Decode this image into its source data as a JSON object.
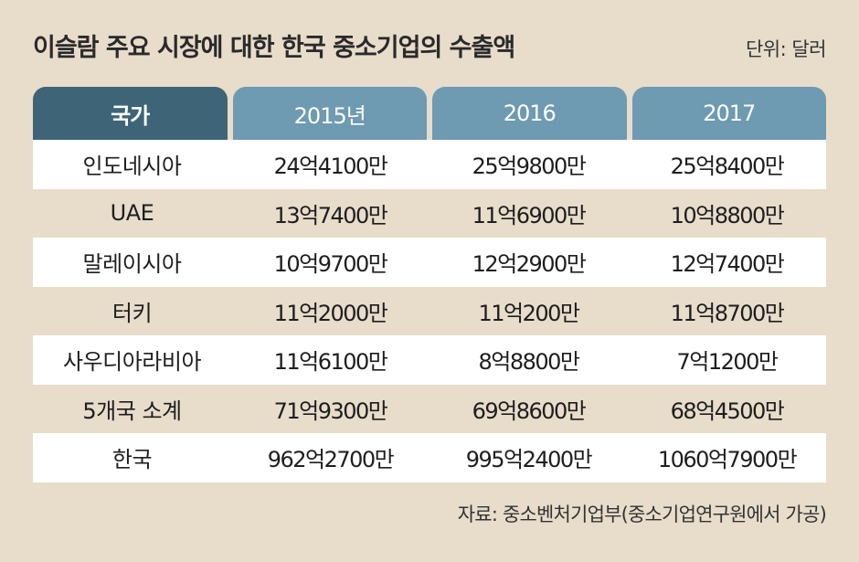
{
  "title": "이슬람 주요 시장에 대한 한국 중소기업의 수출액",
  "unit": "단위: 달러",
  "source": "자료: 중소벤처기업부(중소기업연구원에서 가공)",
  "colors": {
    "background": "#e8dccb",
    "header_first": "#3e6478",
    "header_year": "#6e9ab2",
    "row_white": "#ffffff"
  },
  "chart_data": {
    "type": "table",
    "title": "이슬람 주요 시장에 대한 한국 중소기업의 수출액",
    "unit": "단위: 달러",
    "columns": [
      "국가",
      "2015년",
      "2016",
      "2017"
    ],
    "rows": [
      [
        "인도네시아",
        "24억4100만",
        "25억9800만",
        "25억8400만"
      ],
      [
        "UAE",
        "13억7400만",
        "11억6900만",
        "10억8800만"
      ],
      [
        "말레이시아",
        "10억9700만",
        "12억2900만",
        "12억7400만"
      ],
      [
        "터키",
        "11억2000만",
        "11억200만",
        "11억8700만"
      ],
      [
        "사우디아라비아",
        "11억6100만",
        "8억8800만",
        "7억1200만"
      ],
      [
        "5개국 소계",
        "71억9300만",
        "69억8600만",
        "68억4500만"
      ],
      [
        "한국",
        "962억2700만",
        "995억2400만",
        "1060억7900만"
      ]
    ]
  }
}
